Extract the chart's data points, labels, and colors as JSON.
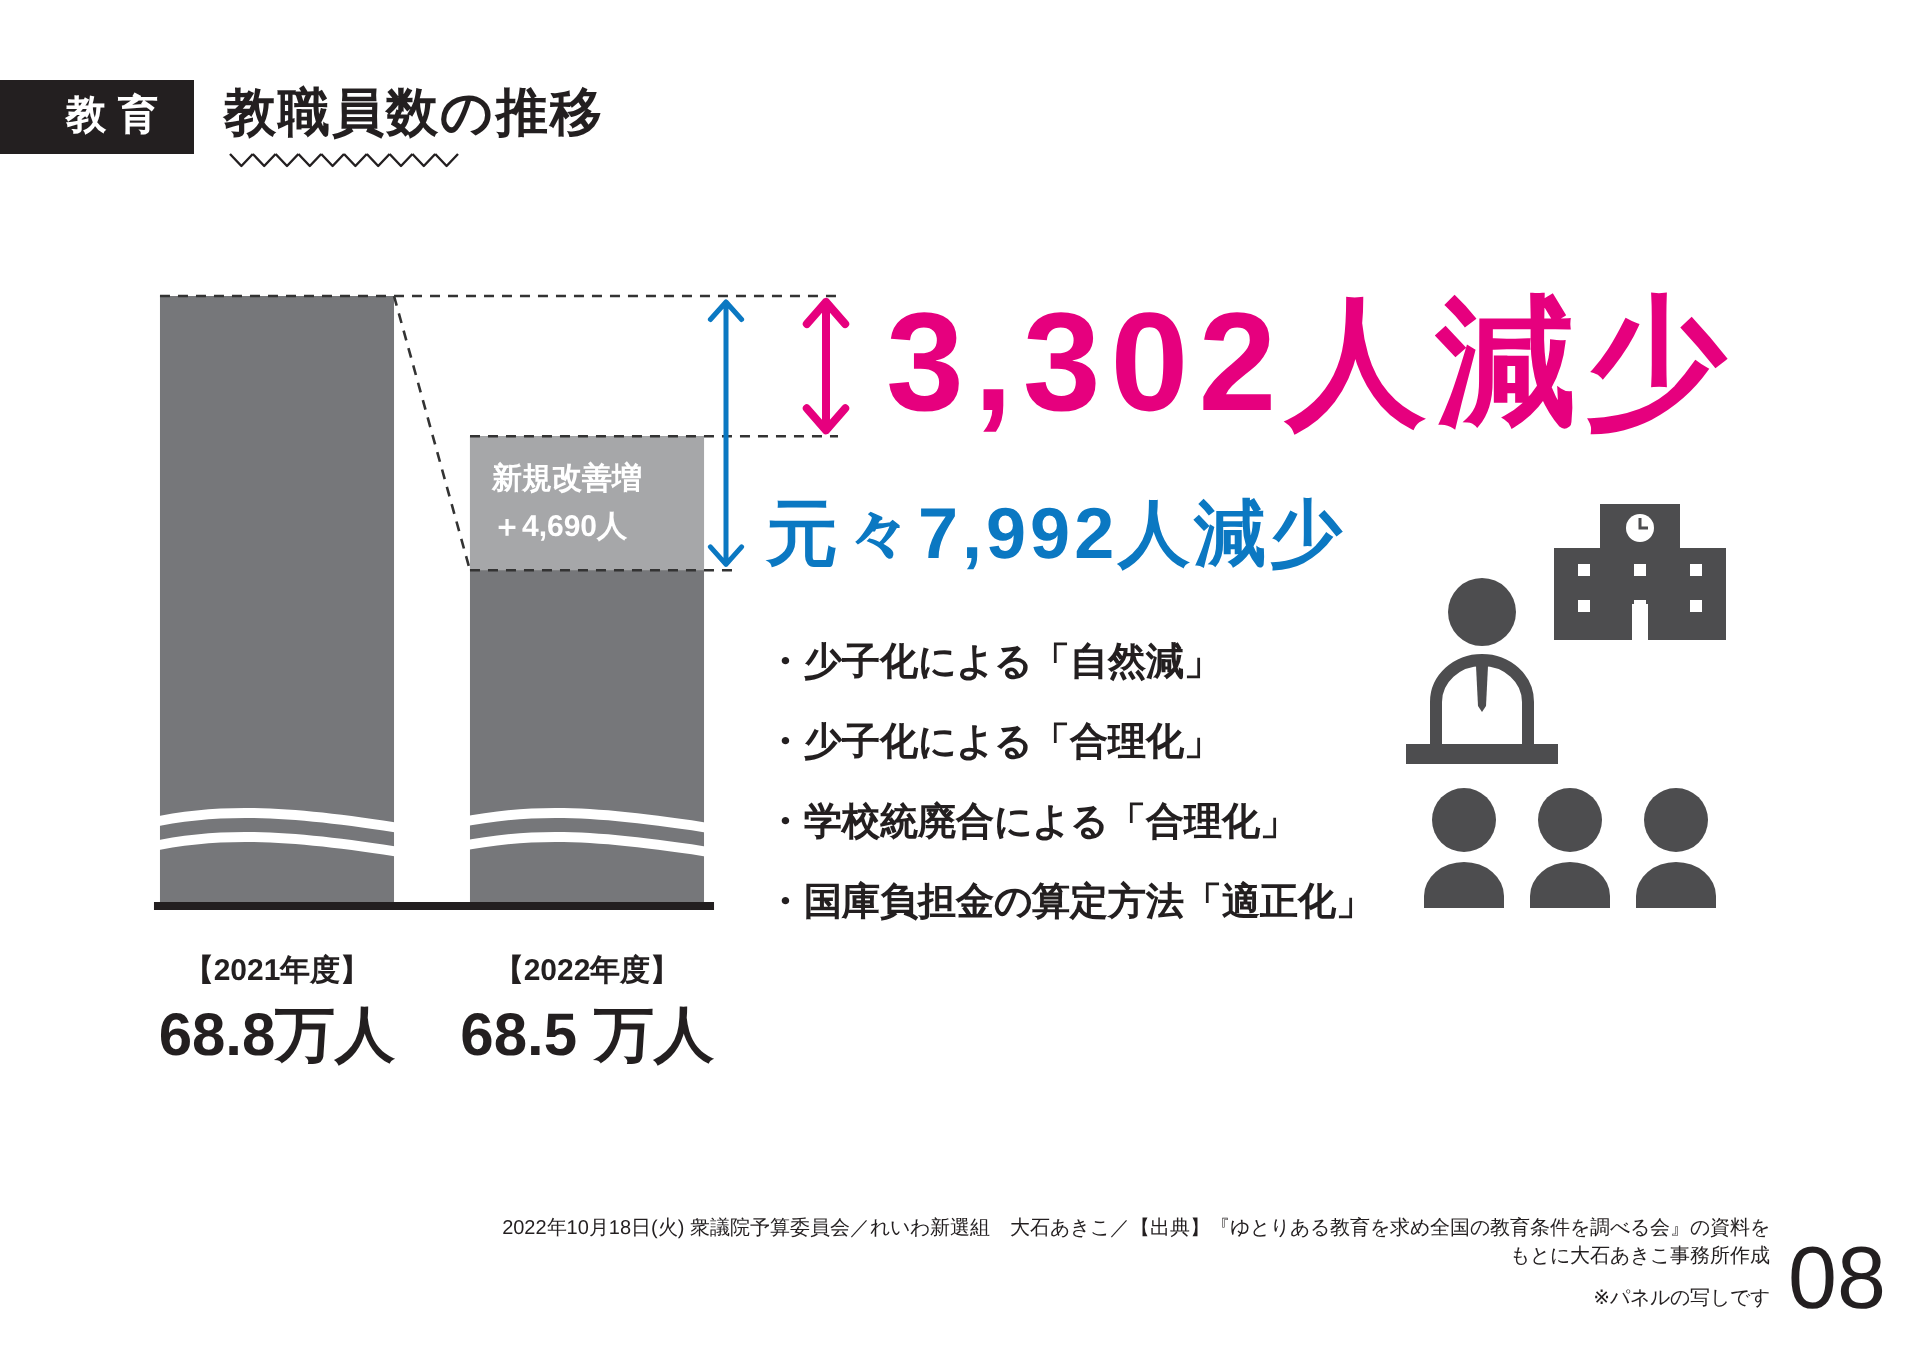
{
  "chart_data": {
    "type": "bar",
    "subtitle": "教育",
    "title": "教職員数の推移",
    "categories": [
      "【2021年度】",
      "【2022年度】"
    ],
    "values": [
      68.8,
      68.5
    ],
    "color": "#76777a",
    "value_labels": [
      "68.8万人",
      "68.5 万人"
    ],
    "ylim": [
      67.5,
      68.8
    ],
    "annotations": [
      {
        "text": "新規改善増＋4,690人",
        "x": "【2022年度】",
        "y": 68.5
      },
      "3,302人減少",
      "元々7,992人減少",
      "・少子化による「自然減」",
      "・少子化による「合理化」",
      "・学校統廃合による「合理化」",
      "・国庫負担金の算定方法「適正化」",
      "2022年10月18日(火) 衆議院予算委員会／れいわ新選組　大石あきこ／【出典】『ゆとりある教育を求め全国の教育条件を調べる会』の資料をもとに大石あきこ事務所作成",
      "※パネルの写しです",
      "08"
    ]
  }
}
